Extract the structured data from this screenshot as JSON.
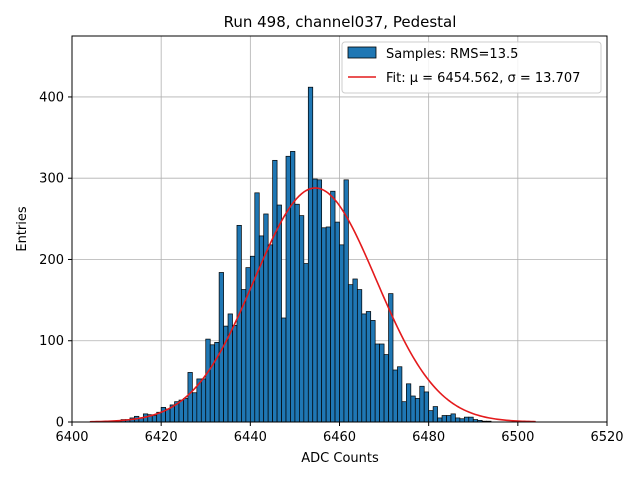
{
  "chart_data": {
    "type": "bar",
    "title": "Run 498, channel037, Pedestal",
    "xlabel": "ADC Counts",
    "ylabel": "Entries",
    "xlim": [
      6400,
      6520
    ],
    "ylim": [
      0,
      475
    ],
    "xticks": [
      6400,
      6420,
      6440,
      6460,
      6480,
      6500,
      6520
    ],
    "yticks": [
      0,
      100,
      200,
      300,
      400
    ],
    "grid": true,
    "legend_position": "top-right",
    "colors": {
      "bars": "#1f77b4",
      "bar_edge": "#000000",
      "fit": "#e41a1c"
    },
    "series": [
      {
        "name": "Samples: RMS=13.5",
        "kind": "histogram",
        "x": [
          6410,
          6411,
          6412,
          6413,
          6414,
          6415,
          6416,
          6417,
          6418,
          6419,
          6420,
          6421,
          6422,
          6423,
          6424,
          6425,
          6426,
          6427,
          6428,
          6429,
          6430,
          6431,
          6432,
          6433,
          6434,
          6435,
          6436,
          6437,
          6438,
          6439,
          6440,
          6441,
          6442,
          6443,
          6444,
          6445,
          6446,
          6447,
          6448,
          6449,
          6450,
          6451,
          6452,
          6453,
          6454,
          6455,
          6456,
          6457,
          6458,
          6459,
          6460,
          6461,
          6462,
          6463,
          6464,
          6465,
          6466,
          6467,
          6468,
          6469,
          6470,
          6471,
          6472,
          6473,
          6474,
          6475,
          6476,
          6477,
          6478,
          6479,
          6480,
          6481,
          6482,
          6483,
          6484,
          6485,
          6486,
          6487,
          6488,
          6489,
          6490,
          6491,
          6492,
          6493,
          6494,
          6495,
          6496,
          6497,
          6498,
          6499,
          6500
        ],
        "values": [
          2,
          3,
          3,
          5,
          7,
          5,
          10,
          9,
          8,
          12,
          18,
          16,
          21,
          25,
          27,
          29,
          61,
          36,
          53,
          53,
          102,
          95,
          98,
          184,
          118,
          133,
          119,
          242,
          163,
          190,
          204,
          282,
          229,
          256,
          218,
          322,
          267,
          128,
          327,
          333,
          268,
          254,
          195,
          412,
          299,
          298,
          239,
          240,
          284,
          246,
          218,
          298,
          169,
          176,
          163,
          133,
          136,
          125,
          96,
          96,
          83,
          158,
          64,
          68,
          25,
          47,
          32,
          29,
          44,
          37,
          14,
          19,
          5,
          8,
          8,
          10,
          5,
          4,
          6,
          6,
          3,
          2,
          1,
          1,
          0,
          0,
          0,
          0,
          0,
          0,
          0
        ]
      },
      {
        "name": "Fit: μ = 6454.562, σ = 13.707",
        "kind": "gaussian",
        "mu": 6454.562,
        "sigma": 13.707,
        "amplitude": 288,
        "x_range": [
          6404,
          6504
        ]
      }
    ]
  }
}
